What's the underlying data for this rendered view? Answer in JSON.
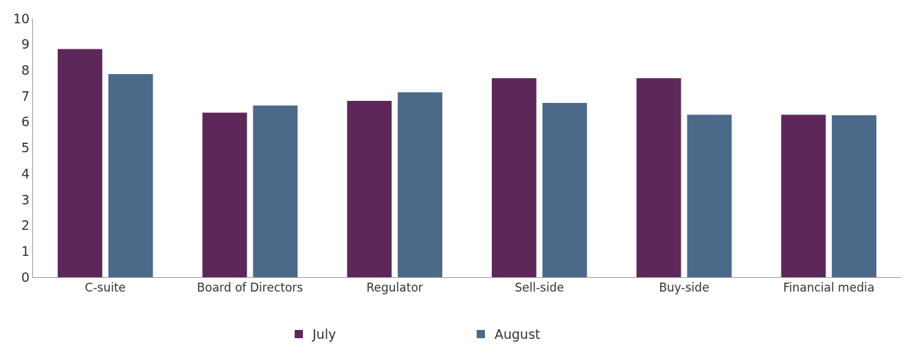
{
  "chart_data": {
    "type": "bar",
    "categories": [
      "C-suite",
      "Board of Directors",
      "Regulator",
      "Sell-side",
      "Buy-side",
      "Financial media"
    ],
    "series": [
      {
        "name": "July",
        "color": "#5e2759",
        "values": [
          8.82,
          6.36,
          6.82,
          7.69,
          7.69,
          6.28
        ]
      },
      {
        "name": "August",
        "color": "#4b6a8a",
        "values": [
          7.85,
          6.64,
          7.15,
          6.74,
          6.28,
          6.26
        ]
      }
    ],
    "ylim": [
      0,
      10
    ],
    "yticks": [
      0,
      1,
      2,
      3,
      4,
      5,
      6,
      7,
      8,
      9,
      10
    ],
    "legend": "bottom"
  }
}
